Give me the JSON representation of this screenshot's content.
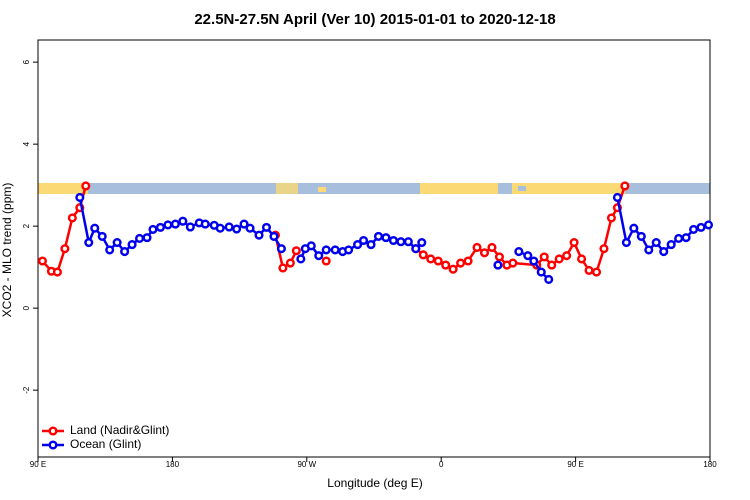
{
  "chart_data": {
    "type": "line",
    "title": "22.5N-27.5N April (Ver 10)   2015-01-01 to 2020-12-18",
    "x_label": "Longitude (deg E)",
    "y_label": "XCO2 - MLO trend (ppm)",
    "xlim": [
      90,
      540
    ],
    "xticks": [
      {
        "value": 90,
        "label": "90 E"
      },
      180,
      {
        "value": 270,
        "label": "90 W"
      },
      {
        "value": 360,
        "label": "0"
      },
      {
        "value": 450,
        "label": "90 E"
      },
      {
        "value": 540,
        "label": "180"
      }
    ],
    "ylim": [
      -3.63,
      6.54
    ],
    "yticks": [
      -2,
      0,
      2,
      4,
      6
    ],
    "legend": "bottom left",
    "series": [
      {
        "name": "Land (Nadir&Glint)",
        "color": "#ff0000",
        "x": [
          93,
          99,
          103,
          108,
          113,
          118,
          122,
          null,
          249,
          254,
          259,
          263,
          null,
          283,
          null,
          343,
          348,
          353,
          358,
          363,
          368,
          373,
          378,
          384,
          389,
          394,
          399,
          404,
          408,
          424,
          429,
          434,
          439,
          444,
          449,
          454,
          459,
          464,
          469,
          474,
          478,
          483
        ],
        "values": [
          1.15,
          0.9,
          0.88,
          1.45,
          2.2,
          2.45,
          2.98,
          null,
          1.78,
          0.98,
          1.1,
          1.4,
          null,
          1.15,
          null,
          1.45,
          1.3,
          1.2,
          1.15,
          1.05,
          0.95,
          1.1,
          1.15,
          1.48,
          1.35,
          1.48,
          1.25,
          1.05,
          1.1,
          1.05,
          1.25,
          1.05,
          1.2,
          1.28,
          1.6,
          1.2,
          0.92,
          0.88,
          1.45,
          2.2,
          2.45,
          2.98
        ]
      },
      {
        "name": "Ocean (Glint)",
        "color": "#0000ee",
        "x": [
          118,
          124,
          128,
          133,
          138,
          143,
          148,
          153,
          158,
          163,
          167,
          172,
          177,
          182,
          187,
          192,
          198,
          202,
          208,
          212,
          218,
          223,
          228,
          232,
          238,
          243,
          248,
          253,
          null,
          266,
          269,
          273,
          278,
          283,
          289,
          294,
          298,
          304,
          308,
          313,
          318,
          323,
          328,
          333,
          338,
          343,
          347,
          null,
          398,
          null,
          412,
          418,
          422,
          427,
          432,
          null,
          478,
          484,
          489,
          494,
          499,
          504,
          509,
          514,
          519,
          524,
          529,
          534,
          539
        ],
        "values": [
          2.7,
          1.6,
          1.95,
          1.75,
          1.42,
          1.6,
          1.38,
          1.55,
          1.7,
          1.72,
          1.92,
          1.97,
          2.03,
          2.05,
          2.12,
          1.98,
          2.08,
          2.05,
          2.02,
          1.95,
          1.98,
          1.93,
          2.05,
          1.95,
          1.78,
          1.97,
          1.75,
          1.45,
          null,
          1.2,
          1.45,
          1.52,
          1.28,
          1.42,
          1.42,
          1.38,
          1.42,
          1.55,
          1.65,
          1.55,
          1.75,
          1.72,
          1.65,
          1.62,
          1.62,
          1.45,
          1.6,
          null,
          1.05,
          null,
          1.38,
          1.28,
          1.15,
          0.88,
          0.7,
          null,
          2.7,
          1.6,
          1.95,
          1.75,
          1.42,
          1.6,
          1.38,
          1.55,
          1.7,
          1.72,
          1.92,
          1.97,
          2.03
        ]
      }
    ]
  }
}
